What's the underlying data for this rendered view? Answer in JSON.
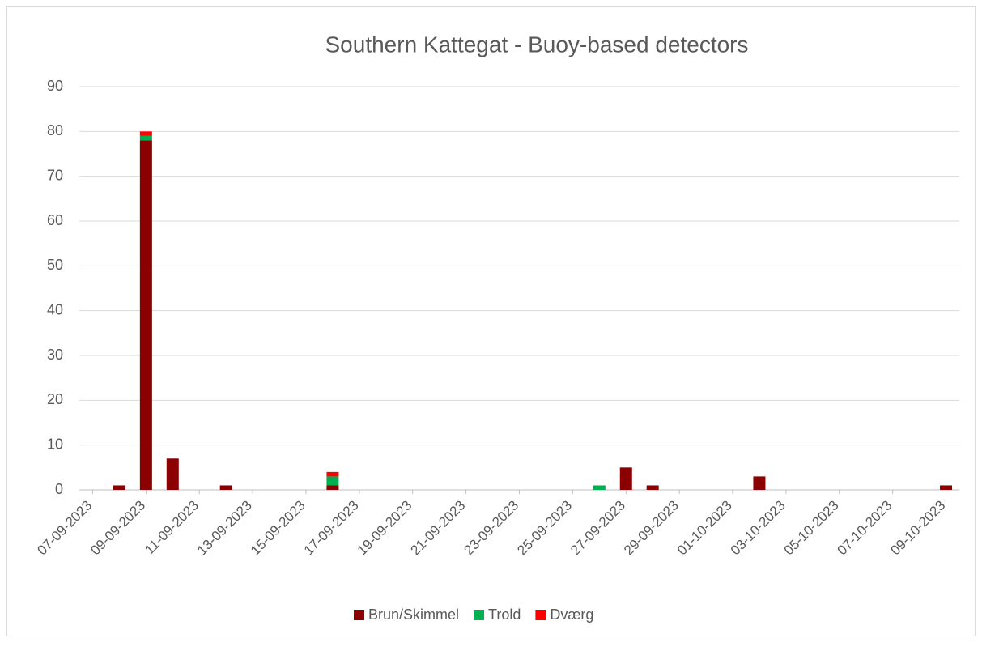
{
  "chart_data": {
    "type": "stacked_bar",
    "title": "Southern Kattegat - Buoy-based detectors",
    "categories": [
      "07-09-2023",
      null,
      "09-09-2023",
      null,
      "11-09-2023",
      null,
      "13-09-2023",
      null,
      "15-09-2023",
      null,
      "17-09-2023",
      null,
      "19-09-2023",
      null,
      "21-09-2023",
      null,
      "23-09-2023",
      null,
      "25-09-2023",
      null,
      "27-09-2023",
      null,
      "29-09-2023",
      null,
      "01-10-2023",
      null,
      "03-10-2023",
      null,
      "05-10-2023",
      null,
      "07-10-2023",
      null,
      "09-10-2023"
    ],
    "series": [
      {
        "name": "Brun/Skimmel",
        "color": "#8b0000",
        "values": [
          0,
          1,
          78,
          7,
          0,
          1,
          0,
          0,
          0,
          1,
          0,
          0,
          0,
          0,
          0,
          0,
          0,
          0,
          0,
          0,
          5,
          1,
          0,
          0,
          0,
          3,
          0,
          0,
          0,
          0,
          0,
          0,
          1
        ]
      },
      {
        "name": "Trold",
        "color": "#00b050",
        "values": [
          0,
          0,
          1,
          0,
          0,
          0,
          0,
          0,
          0,
          2,
          0,
          0,
          0,
          0,
          0,
          0,
          0,
          0,
          0,
          1,
          0,
          0,
          0,
          0,
          0,
          0,
          0,
          0,
          0,
          0,
          0,
          0,
          0
        ]
      },
      {
        "name": "Dværg",
        "color": "#ff0000",
        "values": [
          0,
          0,
          1,
          0,
          0,
          0,
          0,
          0,
          0,
          1,
          0,
          0,
          0,
          0,
          0,
          0,
          0,
          0,
          0,
          0,
          0,
          0,
          0,
          0,
          0,
          0,
          0,
          0,
          0,
          0,
          0,
          0,
          0
        ]
      }
    ],
    "ylim": [
      0,
      90
    ],
    "yticks": [
      0,
      10,
      20,
      30,
      40,
      50,
      60,
      70,
      80,
      90
    ],
    "grid": true,
    "legend": "bottom"
  }
}
